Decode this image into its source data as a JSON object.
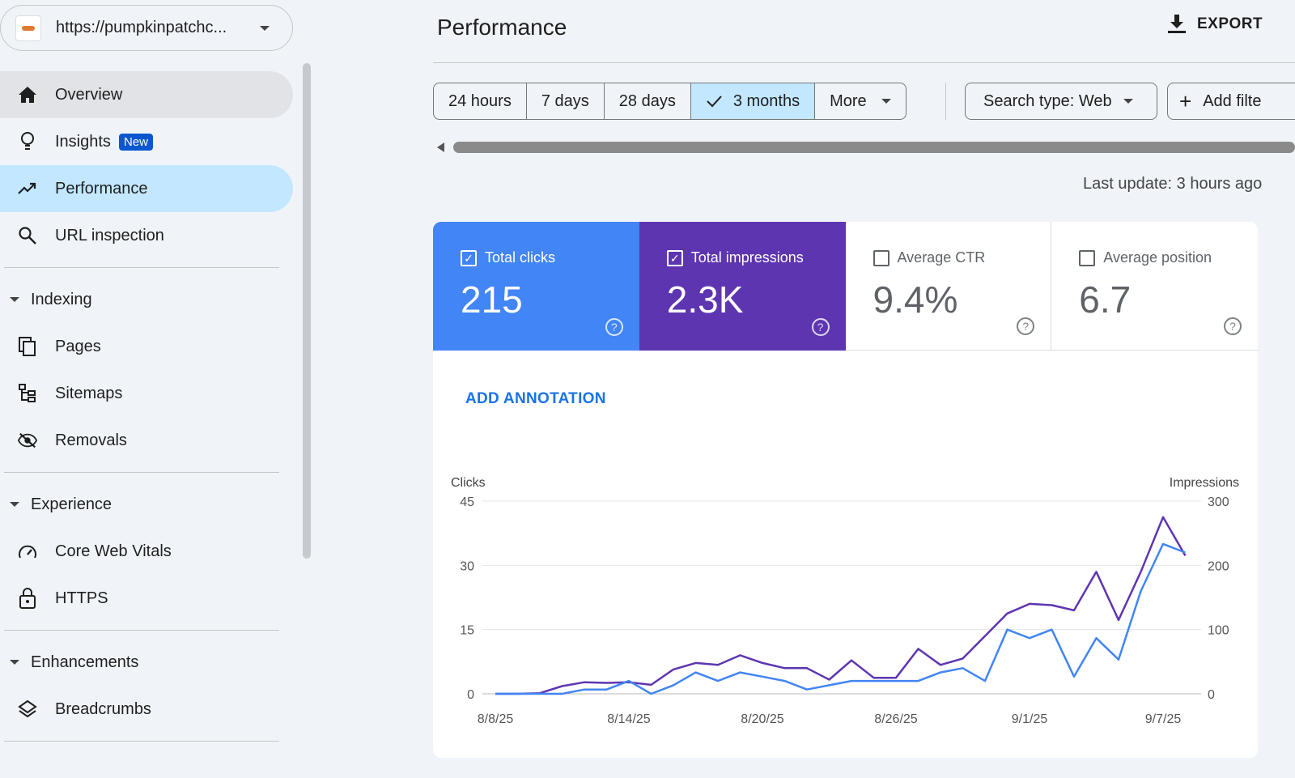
{
  "property": {
    "url": "https://pumpkinpatchc..."
  },
  "sidebar": {
    "overview": "Overview",
    "insights": "Insights",
    "insights_badge": "New",
    "performance": "Performance",
    "url_inspection": "URL inspection",
    "indexing": "Indexing",
    "pages": "Pages",
    "sitemaps": "Sitemaps",
    "removals": "Removals",
    "experience": "Experience",
    "cwv": "Core Web Vitals",
    "https": "HTTPS",
    "enhancements": "Enhancements",
    "breadcrumbs": "Breadcrumbs"
  },
  "header": {
    "title": "Performance",
    "export": "EXPORT"
  },
  "filters": {
    "ranges": [
      "24 hours",
      "7 days",
      "28 days",
      "3 months",
      "More"
    ],
    "selected": "3 months",
    "search_type": "Search type: Web",
    "add_filter": "Add filte"
  },
  "last_update": "Last update: 3 hours ago",
  "metrics": [
    {
      "label": "Total clicks",
      "value": "215",
      "checked": true
    },
    {
      "label": "Total impressions",
      "value": "2.3K",
      "checked": true
    },
    {
      "label": "Average CTR",
      "value": "9.4%",
      "checked": false
    },
    {
      "label": "Average position",
      "value": "6.7",
      "checked": false
    }
  ],
  "annotation": "ADD ANNOTATION",
  "colors": {
    "clicks": "#4285f4",
    "impressions": "#5e35b1",
    "selected": "#c2e7ff"
  },
  "chart_data": {
    "type": "line",
    "ylabel": "Clicks",
    "y2label": "Impressions",
    "ylim": [
      0,
      45
    ],
    "y2lim": [
      0,
      300
    ],
    "yticks": [
      "0",
      "15",
      "30",
      "45"
    ],
    "y2ticks": [
      "0",
      "100",
      "200",
      "300"
    ],
    "xticks": [
      "8/8/25",
      "8/14/25",
      "8/20/25",
      "8/26/25",
      "9/1/25",
      "9/7/25"
    ],
    "xtick_index": [
      0,
      6,
      12,
      18,
      24,
      30
    ],
    "series": [
      {
        "name": "Clicks",
        "axis": "left",
        "values": [
          0,
          0,
          0,
          0,
          1,
          1,
          3,
          0,
          2,
          5,
          3,
          5,
          4,
          3,
          1,
          2,
          3,
          3,
          3,
          3,
          5,
          6,
          3,
          15,
          13,
          15,
          4,
          13,
          8,
          24,
          35,
          33
        ]
      },
      {
        "name": "Impressions",
        "axis": "right",
        "values": [
          0,
          0,
          1,
          12,
          18,
          17,
          18,
          14,
          38,
          48,
          45,
          60,
          48,
          40,
          40,
          22,
          52,
          25,
          25,
          70,
          45,
          55,
          90,
          125,
          140,
          138,
          130,
          190,
          115,
          190,
          275,
          215
        ]
      }
    ]
  }
}
